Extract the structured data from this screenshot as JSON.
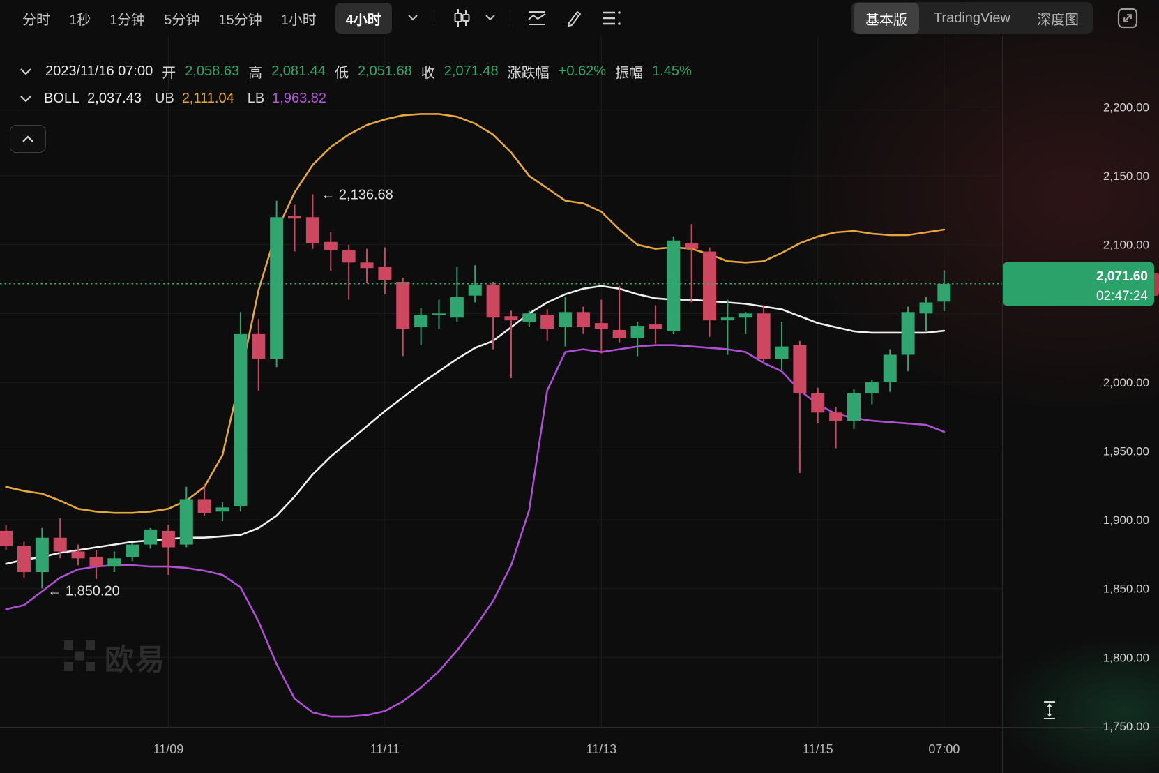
{
  "toolbar": {
    "timeframes": [
      "分时",
      "1秒",
      "1分钟",
      "5分钟",
      "15分钟",
      "1小时",
      "4小时"
    ],
    "selected_timeframe": "4小时",
    "view_tabs": [
      "基本版",
      "TradingView",
      "深度图"
    ],
    "selected_view_tab": "基本版",
    "icons": [
      "chevron-down",
      "candle-style",
      "chevron-down",
      "indicator",
      "pencil",
      "settings-list",
      "expand"
    ]
  },
  "ohlc_row": {
    "datetime": "2023/11/16 07:00",
    "open_label": "开",
    "open": "2,058.63",
    "high_label": "高",
    "high": "2,081.44",
    "low_label": "低",
    "low": "2,051.68",
    "close_label": "收",
    "close": "2,071.48",
    "change_label": "涨跌幅",
    "change": "+0.62%",
    "amplitude_label": "振幅",
    "amplitude": "1.45%"
  },
  "boll_row": {
    "label": "BOLL",
    "mid": "2,037.43",
    "ub_label": "UB",
    "ub": "2,111.04",
    "lb_label": "LB",
    "lb": "1,963.82"
  },
  "price_axis": {
    "tick_labels": [
      "2,200.00",
      "2,150.00",
      "2,100.00",
      "2,000.00",
      "1,950.00",
      "1,900.00",
      "1,850.00",
      "1,800.00",
      "1,750.00"
    ],
    "current_price_label": "2,071.60",
    "countdown": "02:47:24"
  },
  "annotations": {
    "high_marker": "← 2,136.68",
    "low_marker": "← 1,850.20"
  },
  "watermark": "欧易",
  "colors": {
    "up": "#31a56f",
    "down": "#ce4760",
    "ub_line": "#e8a73e",
    "mid_line": "#f0f0f0",
    "lb_line": "#ae4fd5",
    "current_price": "#2fae6e",
    "badge_bg": "#2aa269",
    "badge_tag": "#b5384b",
    "grid": "#1d1d1d",
    "axis_border": "#2a2a2a",
    "axis_text": "#d2d2d2",
    "time_text": "#b8b8b8"
  },
  "chart_data": {
    "type": "candlestick",
    "timeframe": "4小时",
    "title": "",
    "ylabel": "price",
    "ylim": [
      1750,
      2200
    ],
    "grid": true,
    "tick_prices": [
      2200,
      2150,
      2100,
      2000,
      1950,
      1900,
      1850,
      1800,
      1750
    ],
    "grid_prices": [
      2200,
      2150,
      2100,
      2050,
      2000,
      1950,
      1900,
      1850,
      1800,
      1750
    ],
    "time_ticks": [
      {
        "label": "11/09",
        "index": 9
      },
      {
        "label": "11/11",
        "index": 21
      },
      {
        "label": "11/13",
        "index": 33
      },
      {
        "label": "11/15",
        "index": 45
      },
      {
        "label": "07:00",
        "index": 52
      }
    ],
    "current_price": 2071.6,
    "high_marker": {
      "price": 2136.68,
      "index": 17
    },
    "low_marker": {
      "price": 1850.2,
      "index": 2
    },
    "candles_ohlc": [
      [
        1892,
        1896,
        1878,
        1881
      ],
      [
        1881,
        1884,
        1858,
        1862
      ],
      [
        1862,
        1894,
        1850.2,
        1887
      ],
      [
        1887,
        1901,
        1872,
        1877
      ],
      [
        1877,
        1882,
        1867,
        1872
      ],
      [
        1873,
        1878,
        1857,
        1866
      ],
      [
        1866,
        1877,
        1862,
        1872
      ],
      [
        1873,
        1883,
        1870,
        1882
      ],
      [
        1882,
        1894,
        1879,
        1893
      ],
      [
        1892,
        1896,
        1860,
        1880
      ],
      [
        1882,
        1924,
        1880,
        1915
      ],
      [
        1915,
        1926,
        1903,
        1905
      ],
      [
        1906,
        1913,
        1899,
        1909
      ],
      [
        1910,
        2051,
        1906,
        2035
      ],
      [
        2035,
        2046,
        1994,
        2017
      ],
      [
        2017,
        2132,
        2011,
        2120
      ],
      [
        2121,
        2129,
        2095,
        2119
      ],
      [
        2120,
        2136.68,
        2097,
        2101
      ],
      [
        2102,
        2109,
        2081,
        2096
      ],
      [
        2096,
        2100,
        2060,
        2087
      ],
      [
        2087,
        2097,
        2072,
        2083
      ],
      [
        2084,
        2098,
        2064,
        2074
      ],
      [
        2073,
        2076,
        2019,
        2039
      ],
      [
        2040,
        2054,
        2027,
        2049
      ],
      [
        2049,
        2060,
        2039,
        2050
      ],
      [
        2047,
        2084,
        2044,
        2062
      ],
      [
        2063,
        2085,
        2058,
        2071
      ],
      [
        2071,
        2073,
        2024,
        2047
      ],
      [
        2048,
        2052,
        2003,
        2045
      ],
      [
        2044,
        2052,
        2040,
        2050
      ],
      [
        2049,
        2053,
        2030,
        2039
      ],
      [
        2040,
        2062,
        2026,
        2051
      ],
      [
        2051,
        2055,
        2035,
        2040
      ],
      [
        2043,
        2060,
        2021,
        2039
      ],
      [
        2038,
        2070,
        2029,
        2032
      ],
      [
        2032,
        2044,
        2019,
        2041
      ],
      [
        2042,
        2056,
        2028,
        2039
      ],
      [
        2037,
        2106,
        2035,
        2103
      ],
      [
        2101,
        2115,
        2058,
        2097
      ],
      [
        2095,
        2098,
        2033,
        2045
      ],
      [
        2045,
        2060,
        2020,
        2047
      ],
      [
        2047,
        2051,
        2035,
        2050
      ],
      [
        2050,
        2056,
        2015,
        2017
      ],
      [
        2017,
        2044,
        2009,
        2026
      ],
      [
        2027,
        2030,
        1934,
        1992
      ],
      [
        1992,
        1996,
        1970,
        1978
      ],
      [
        1978,
        1982,
        1952,
        1972
      ],
      [
        1972,
        1995,
        1966,
        1992
      ],
      [
        1992,
        2002,
        1984,
        2000
      ],
      [
        2000,
        2024,
        1993,
        2020
      ],
      [
        2020,
        2055,
        2008,
        2051
      ],
      [
        2050,
        2062,
        2037,
        2058
      ],
      [
        2058.63,
        2081.44,
        2051.68,
        2071.48
      ]
    ],
    "boll_mid": [
      1868,
      1871,
      1873,
      1876,
      1878,
      1880,
      1882,
      1884,
      1885,
      1886,
      1887,
      1887,
      1888,
      1889,
      1894,
      1903,
      1917,
      1933,
      1946,
      1957,
      1968,
      1979,
      1989,
      1999,
      2008,
      2017,
      2025,
      2030,
      2040,
      2050,
      2058,
      2064,
      2068,
      2070,
      2068,
      2064,
      2061,
      2060,
      2060,
      2059,
      2058,
      2057,
      2055,
      2053,
      2048,
      2043,
      2040,
      2037,
      2036,
      2036,
      2036,
      2036,
      2037.4
    ],
    "boll_ub": [
      1924,
      1921,
      1919,
      1914,
      1908,
      1906,
      1905,
      1905,
      1906,
      1908,
      1914,
      1924,
      1947,
      2004,
      2067,
      2110,
      2138,
      2158,
      2171,
      2180,
      2187,
      2191,
      2194,
      2195,
      2195,
      2193,
      2188,
      2180,
      2167,
      2150,
      2141,
      2132,
      2130,
      2124,
      2111,
      2100,
      2097,
      2098,
      2097,
      2093,
      2088,
      2087,
      2088,
      2094,
      2101,
      2106,
      2109,
      2110,
      2108,
      2107,
      2107,
      2109,
      2111
    ],
    "boll_lb": [
      1835,
      1838,
      1848,
      1858,
      1864,
      1866,
      1867,
      1867,
      1866,
      1866,
      1865,
      1863,
      1860,
      1851,
      1826,
      1795,
      1770,
      1760,
      1757,
      1757,
      1758,
      1761,
      1768,
      1778,
      1790,
      1805,
      1822,
      1841,
      1867,
      1907,
      1994,
      2022,
      2024,
      2022,
      2024,
      2026,
      2027,
      2027,
      2026,
      2025,
      2024,
      2022,
      2014,
      2008,
      1994,
      1984,
      1977,
      1974,
      1972,
      1971,
      1970,
      1969,
      1964
    ]
  }
}
